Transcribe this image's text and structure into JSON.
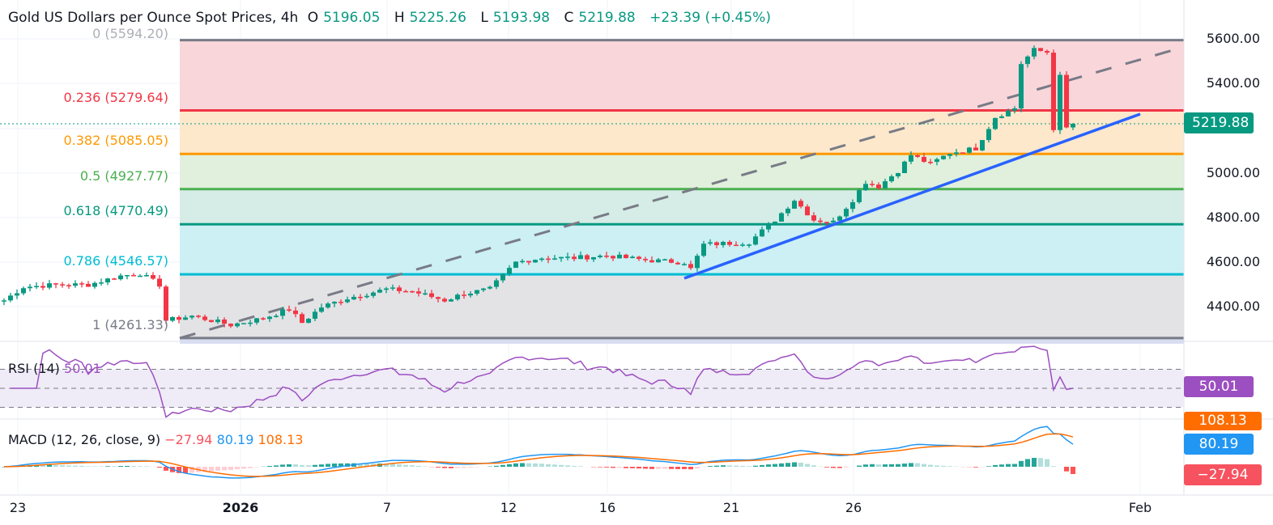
{
  "header": {
    "title": "Gold US Dollars per Ounce Spot Prices, 4h",
    "o_label": "O",
    "open": "5196.05",
    "h_label": "H",
    "high": "5225.26",
    "l_label": "L",
    "low": "5193.98",
    "c_label": "C",
    "close": "5219.88",
    "change": "+23.39 (+0.45%)"
  },
  "fib": [
    {
      "label": "0 (5594.20)",
      "level": 5594.2,
      "color": "#787b86"
    },
    {
      "label": "0.236 (5279.64)",
      "level": 5279.64,
      "color": "#f23645"
    },
    {
      "label": "0.382 (5085.05)",
      "level": 5085.05,
      "color": "#ff9800"
    },
    {
      "label": "0.5 (4927.77)",
      "level": 4927.77,
      "color": "#4caf50"
    },
    {
      "label": "0.618 (4770.49)",
      "level": 4770.49,
      "color": "#089981"
    },
    {
      "label": "0.786 (4546.57)",
      "level": 4546.57,
      "color": "#00bcd4"
    },
    {
      "label": "1 (4261.33)",
      "level": 4261.33,
      "color": "#787b86"
    }
  ],
  "price_axis": [
    "5600.00",
    "5400.00",
    "5000.00",
    "4800.00",
    "4600.00",
    "4400.00"
  ],
  "current_price": "5219.88",
  "rsi": {
    "label": "RSI (14)",
    "value": "50.01"
  },
  "macd": {
    "label": "MACD (12, 26, close, 9)",
    "hist": "−27.94",
    "macd": "80.19",
    "signal": "108.13"
  },
  "x_axis": [
    "23",
    "2026",
    "7",
    "12",
    "16",
    "21",
    "26",
    "Feb"
  ],
  "chart_data": {
    "type": "candlestick",
    "title": "Gold US Dollars per Ounce Spot Prices, 4h",
    "ylim": [
      4240,
      5620
    ],
    "close_path": [
      [
        0,
        4430
      ],
      [
        3,
        4490
      ],
      [
        8,
        4500
      ],
      [
        13,
        4500
      ],
      [
        18,
        4540
      ],
      [
        21,
        4550
      ],
      [
        24,
        4500
      ],
      [
        25,
        4340
      ],
      [
        29,
        4360
      ],
      [
        35,
        4320
      ],
      [
        40,
        4350
      ],
      [
        44,
        4390
      ],
      [
        46,
        4330
      ],
      [
        49,
        4400
      ],
      [
        53,
        4440
      ],
      [
        59,
        4480
      ],
      [
        63,
        4470
      ],
      [
        68,
        4430
      ],
      [
        71,
        4460
      ],
      [
        75,
        4480
      ],
      [
        79,
        4600
      ],
      [
        83,
        4620
      ],
      [
        88,
        4620
      ],
      [
        93,
        4630
      ],
      [
        99,
        4610
      ],
      [
        105,
        4600
      ],
      [
        106,
        4570
      ],
      [
        108,
        4680
      ],
      [
        115,
        4690
      ],
      [
        119,
        4790
      ],
      [
        122,
        4880
      ],
      [
        125,
        4790
      ],
      [
        128,
        4780
      ],
      [
        131,
        4880
      ],
      [
        133,
        4960
      ],
      [
        135,
        4940
      ],
      [
        138,
        5010
      ],
      [
        140,
        5080
      ],
      [
        143,
        5040
      ],
      [
        146,
        5090
      ],
      [
        150,
        5110
      ],
      [
        153,
        5250
      ],
      [
        156,
        5290
      ],
      [
        157,
        5490
      ],
      [
        159,
        5550
      ],
      [
        161,
        5540
      ],
      [
        162,
        5200
      ],
      [
        163,
        5430
      ],
      [
        164,
        5200
      ],
      [
        165,
        5220
      ]
    ]
  },
  "colors": {
    "up": "#089981",
    "down": "#f23645",
    "rsi": "#9c4fc0",
    "macd": "#2196f3",
    "signal": "#ff6d00"
  }
}
